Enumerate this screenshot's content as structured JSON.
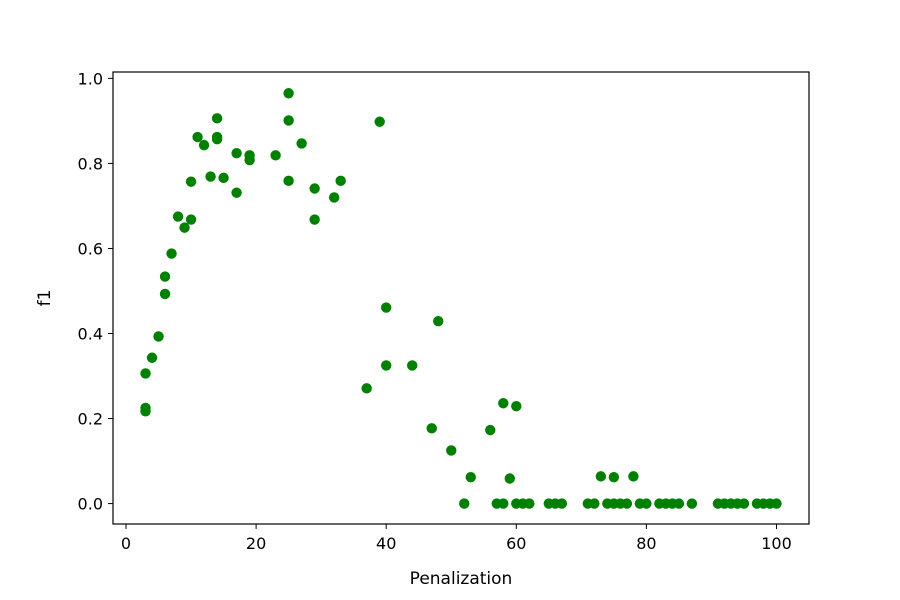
{
  "chart_data": {
    "type": "scatter",
    "title": "",
    "xlabel": "Penalization",
    "ylabel": "f1",
    "xlim": [
      -2,
      105
    ],
    "ylim": [
      -0.048,
      1.015
    ],
    "xticks": [
      0,
      20,
      40,
      60,
      80,
      100
    ],
    "xtick_labels": [
      "0",
      "20",
      "40",
      "60",
      "80",
      "100"
    ],
    "yticks": [
      0.0,
      0.2,
      0.4,
      0.6,
      0.8,
      1.0
    ],
    "ytick_labels": [
      "0.0",
      "0.2",
      "0.4",
      "0.6",
      "0.8",
      "1.0"
    ],
    "grid": false,
    "legend": "none",
    "marker_color": "#008000",
    "series": [
      {
        "points": [
          [
            3,
            0.306
          ],
          [
            3,
            0.225
          ],
          [
            3,
            0.217
          ],
          [
            4,
            0.343
          ],
          [
            5,
            0.393
          ],
          [
            6,
            0.534
          ],
          [
            6,
            0.493
          ],
          [
            7,
            0.588
          ],
          [
            8,
            0.675
          ],
          [
            9,
            0.649
          ],
          [
            10,
            0.757
          ],
          [
            10,
            0.668
          ],
          [
            11,
            0.862
          ],
          [
            12,
            0.843
          ],
          [
            13,
            0.769
          ],
          [
            14,
            0.906
          ],
          [
            14,
            0.862
          ],
          [
            14,
            0.857
          ],
          [
            15,
            0.766
          ],
          [
            17,
            0.824
          ],
          [
            17,
            0.731
          ],
          [
            19,
            0.819
          ],
          [
            19,
            0.808
          ],
          [
            23,
            0.819
          ],
          [
            25,
            0.965
          ],
          [
            25,
            0.901
          ],
          [
            25,
            0.759
          ],
          [
            27,
            0.847
          ],
          [
            29,
            0.741
          ],
          [
            29,
            0.668
          ],
          [
            32,
            0.72
          ],
          [
            33,
            0.759
          ],
          [
            37,
            0.271
          ],
          [
            39,
            0.898
          ],
          [
            40,
            0.461
          ],
          [
            40,
            0.325
          ],
          [
            44,
            0.325
          ],
          [
            47,
            0.177
          ],
          [
            48,
            0.429
          ],
          [
            50,
            0.125
          ],
          [
            52,
            0.0
          ],
          [
            53,
            0.062
          ],
          [
            56,
            0.173
          ],
          [
            57,
            0.0
          ],
          [
            58,
            0.236
          ],
          [
            58,
            0.0
          ],
          [
            59,
            0.059
          ],
          [
            60,
            0.229
          ],
          [
            60,
            0.0
          ],
          [
            61,
            0.0
          ],
          [
            62,
            0.0
          ],
          [
            65,
            0.0
          ],
          [
            66,
            0.0
          ],
          [
            67,
            0.0
          ],
          [
            71,
            0.0
          ],
          [
            72,
            0.0
          ],
          [
            73,
            0.064
          ],
          [
            74,
            0.0
          ],
          [
            75,
            0.062
          ],
          [
            75,
            0.0
          ],
          [
            76,
            0.0
          ],
          [
            77,
            0.0
          ],
          [
            78,
            0.064
          ],
          [
            79,
            0.0
          ],
          [
            80,
            0.0
          ],
          [
            82,
            0.0
          ],
          [
            83,
            0.0
          ],
          [
            84,
            0.0
          ],
          [
            85,
            0.0
          ],
          [
            87,
            0.0
          ],
          [
            91,
            0.0
          ],
          [
            92,
            0.0
          ],
          [
            93,
            0.0
          ],
          [
            94,
            0.0
          ],
          [
            95,
            0.0
          ],
          [
            97,
            0.0
          ],
          [
            98,
            0.0
          ],
          [
            99,
            0.0
          ],
          [
            100,
            0.0
          ]
        ]
      }
    ]
  }
}
